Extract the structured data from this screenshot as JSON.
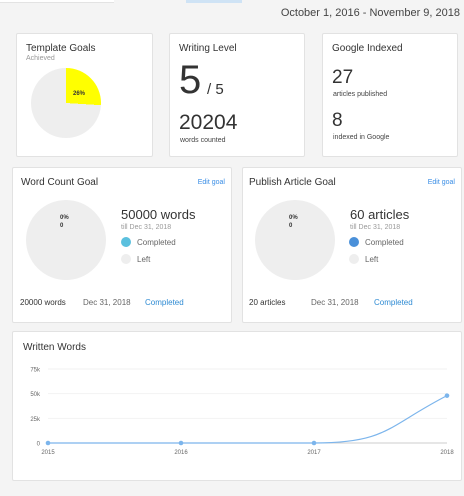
{
  "header": {
    "date_range": "October 1, 2016 - November 9, 2018"
  },
  "template_goals": {
    "title": "Template Goals",
    "subtitle": "Achieved",
    "percent_label": "26%",
    "percent_value": 26,
    "fill_color": "#ffff00",
    "base_color": "#eeeeee"
  },
  "writing_level": {
    "title": "Writing Level",
    "level": "5",
    "level_max": "/ 5",
    "words_count": "20204",
    "words_label": "words counted"
  },
  "google_indexed": {
    "title": "Google Indexed",
    "published_count": "27",
    "published_label": "articles published",
    "indexed_count": "8",
    "indexed_label": "indexed in Google"
  },
  "word_count_goal": {
    "title": "Word Count Goal",
    "edit_label": "Edit goal",
    "pie_pct": "0%",
    "pie_value": "0",
    "goal": "50000 words",
    "till": "till Dec 31, 2018",
    "legend": [
      {
        "label": "Completed",
        "color": "#5bc0de"
      },
      {
        "label": "Left",
        "color": "#eeeeee"
      }
    ],
    "footer_count": "20000 words",
    "footer_date": "Dec 31, 2018",
    "footer_status": "Completed"
  },
  "publish_article_goal": {
    "title": "Publish Article Goal",
    "edit_label": "Edit goal",
    "pie_pct": "0%",
    "pie_value": "0",
    "goal": "60 articles",
    "till": "till Dec 31, 2018",
    "legend": [
      {
        "label": "Completed",
        "color": "#4a90d9"
      },
      {
        "label": "Left",
        "color": "#eeeeee"
      }
    ],
    "footer_count": "20 articles",
    "footer_date": "Dec 31, 2018",
    "footer_status": "Completed"
  },
  "written_words": {
    "title": "Written Words",
    "chart_data": {
      "type": "line",
      "title": "Written Words",
      "x": [
        "2015",
        "2016",
        "2017",
        "2018"
      ],
      "series": [
        {
          "values": [
            0,
            0,
            0,
            48000
          ]
        }
      ],
      "ylim": [
        0,
        75000
      ],
      "y_ticks": [
        "0",
        "25k",
        "50k",
        "75k"
      ],
      "x_ticks": [
        "2015",
        "2016",
        "2017",
        "2018"
      ],
      "line_color": "#7cb5ec",
      "grid": true
    }
  }
}
